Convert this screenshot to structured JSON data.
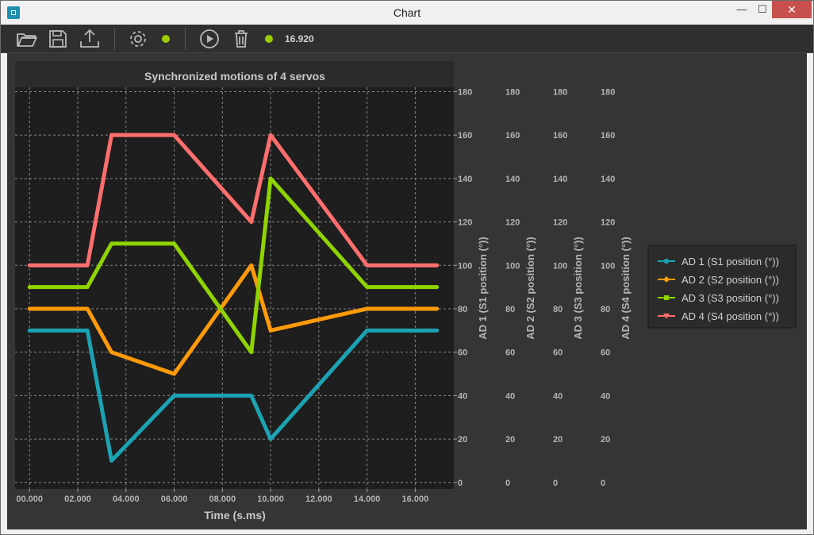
{
  "window": {
    "title": "Chart",
    "minimize": "—",
    "maximize": "☐",
    "close": "✕"
  },
  "toolbar": {
    "icons": [
      "open-folder-icon",
      "save-icon",
      "upload-icon",
      "settings-icon",
      "play-icon",
      "trash-icon"
    ],
    "status_color": "#9acd00",
    "time_value": "16.920"
  },
  "colors": {
    "background": "#353535",
    "plot_area": "#1e1e1e",
    "text": "#b4b4b4",
    "grid": "#a0a0a0"
  },
  "chart_data": {
    "type": "line",
    "title": "Synchronized motions of 4 servos",
    "xlabel": "Time (s.ms)",
    "xlim": [
      -0.6,
      17.6
    ],
    "xticks": [
      0,
      2,
      4,
      6,
      8,
      10,
      12,
      14,
      16
    ],
    "xtick_labels": [
      "00.000",
      "02.000",
      "04.000",
      "06.000",
      "08.000",
      "10.000",
      "12.000",
      "14.000",
      "16.000"
    ],
    "grid": true,
    "legend_position": "right",
    "y_axes": [
      {
        "label": "AD 1 (S1 position (°))",
        "ylim": [
          -3,
          182
        ],
        "ticks": [
          0,
          20,
          40,
          60,
          80,
          100,
          120,
          140,
          160,
          180
        ]
      },
      {
        "label": "AD 2 (S2 position (°))",
        "ylim": [
          -3,
          182
        ],
        "ticks": [
          0,
          20,
          40,
          60,
          80,
          100,
          120,
          140,
          160,
          180
        ]
      },
      {
        "label": "AD 3 (S3 position (°))",
        "ylim": [
          -3,
          182
        ],
        "ticks": [
          0,
          20,
          40,
          60,
          80,
          100,
          120,
          140,
          160,
          180
        ]
      },
      {
        "label": "AD 4 (S4 position (°))",
        "ylim": [
          -3,
          182
        ],
        "ticks": [
          0,
          20,
          40,
          60,
          80,
          100,
          120,
          140,
          160,
          180
        ]
      }
    ],
    "series": [
      {
        "name": "AD 1 (S1 position (°))",
        "color": "#1ba3b3",
        "marker": "circle",
        "x": [
          0,
          2.4,
          3.4,
          6,
          9.2,
          10,
          14,
          16.9
        ],
        "y": [
          70,
          70,
          10,
          40,
          40,
          20,
          70,
          70
        ]
      },
      {
        "name": "AD 2 (S2 position (°))",
        "color": "#ff9a0a",
        "marker": "diamond",
        "x": [
          0,
          2.4,
          3.4,
          6,
          9.2,
          10,
          14,
          16.9
        ],
        "y": [
          80,
          80,
          60,
          50,
          100,
          70,
          80,
          80
        ]
      },
      {
        "name": "AD 3 (S3 position (°))",
        "color": "#8fd400",
        "marker": "square",
        "x": [
          0,
          2.4,
          3.4,
          6,
          9.2,
          10,
          14,
          16.9
        ],
        "y": [
          90,
          90,
          110,
          110,
          60,
          140,
          90,
          90
        ]
      },
      {
        "name": "AD 4 (S4 position (°))",
        "color": "#ff6e6e",
        "marker": "triangle",
        "x": [
          0,
          2.4,
          3.4,
          6,
          9.2,
          10,
          14,
          16.9
        ],
        "y": [
          100,
          100,
          160,
          160,
          120,
          160,
          100,
          100
        ]
      }
    ]
  }
}
